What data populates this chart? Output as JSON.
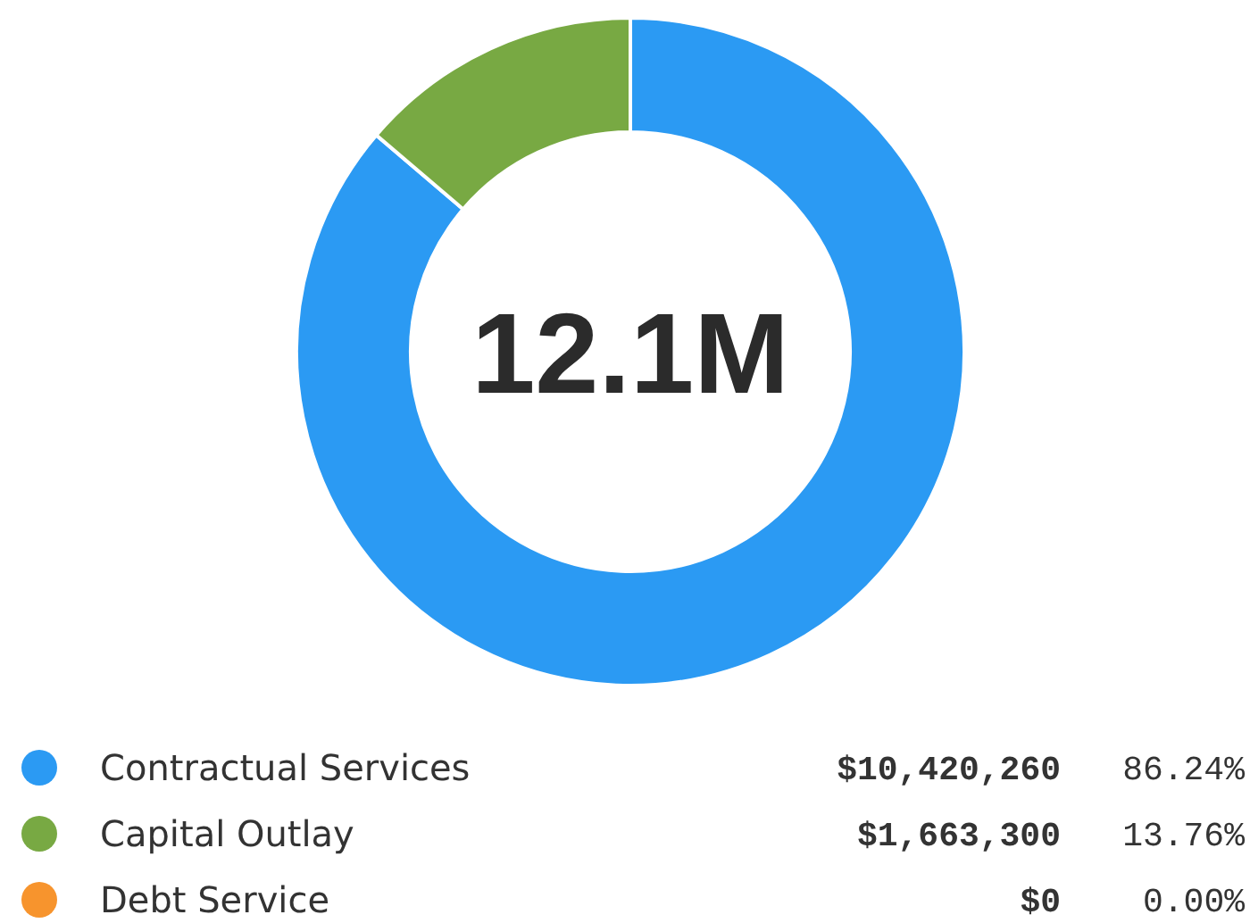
{
  "chart_data": {
    "type": "donut",
    "title": "12.1M",
    "categories": [
      "Contractual Services",
      "Capital Outlay",
      "Debt Service"
    ],
    "values": [
      10420260,
      1663300,
      0
    ],
    "colors": [
      "#2b9af3",
      "#78a943",
      "#f7942d"
    ],
    "value_labels": [
      "$10,420,260",
      "$1,663,300",
      "$0"
    ],
    "annotations": [
      "86.24%",
      "13.76%",
      "0.00%"
    ],
    "legend": "bottom"
  }
}
